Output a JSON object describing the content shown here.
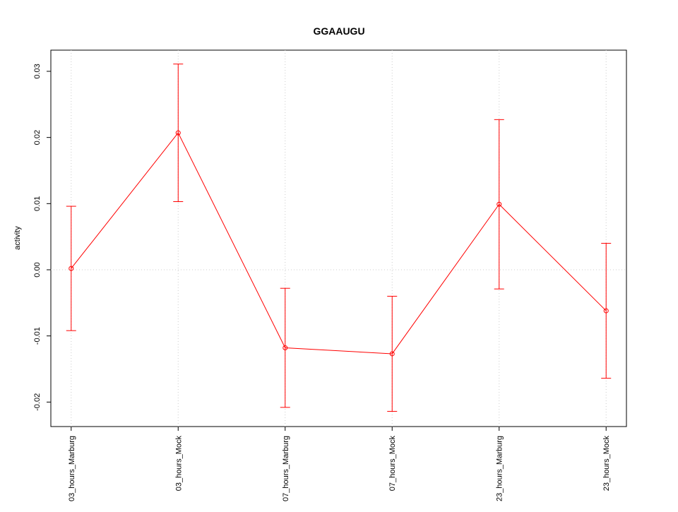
{
  "chart_data": {
    "type": "line",
    "title": "GGAAUGU",
    "y_label": "activity",
    "categories": [
      "03_hours_Marburg",
      "03_hours_Mock",
      "07_hours_Marburg",
      "07_hours_Mock",
      "23_hours_Marburg",
      "23_hours_Mock"
    ],
    "series": [
      {
        "color": "#ff0000",
        "values": [
          0.0002,
          0.0207,
          -0.0118,
          -0.0127,
          0.0099,
          -0.0062
        ],
        "errors": [
          0.0094,
          0.0104,
          0.009,
          0.0087,
          0.0128,
          0.0102
        ]
      }
    ],
    "ylim": [
      -0.0237,
      0.0332
    ],
    "yticks": [
      -0.02,
      -0.01,
      {
        "value": 0,
        "label": "0.00"
      },
      0.01,
      0.02,
      0.03
    ],
    "grid": true
  }
}
